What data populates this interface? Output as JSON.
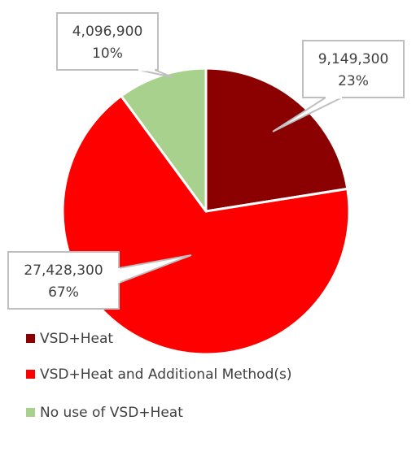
{
  "chart_data": {
    "type": "pie",
    "start_angle_deg": 0,
    "direction": "clockwise",
    "slice_border_color": "#ffffff",
    "legend_position": "bottom-left",
    "slices": [
      {
        "label": "VSD+Heat",
        "value": 9149300,
        "value_label": "9,149,300",
        "percent_label": "23%",
        "color": "#8b0000"
      },
      {
        "label": "VSD+Heat and Additional Method(s)",
        "value": 27428300,
        "value_label": "27,428,300",
        "percent_label": "67%",
        "color": "#ff0000"
      },
      {
        "label": "No use of VSD+Heat",
        "value": 4096900,
        "value_label": "4,096,900",
        "percent_label": "10%",
        "color": "#a9d18e"
      }
    ]
  }
}
